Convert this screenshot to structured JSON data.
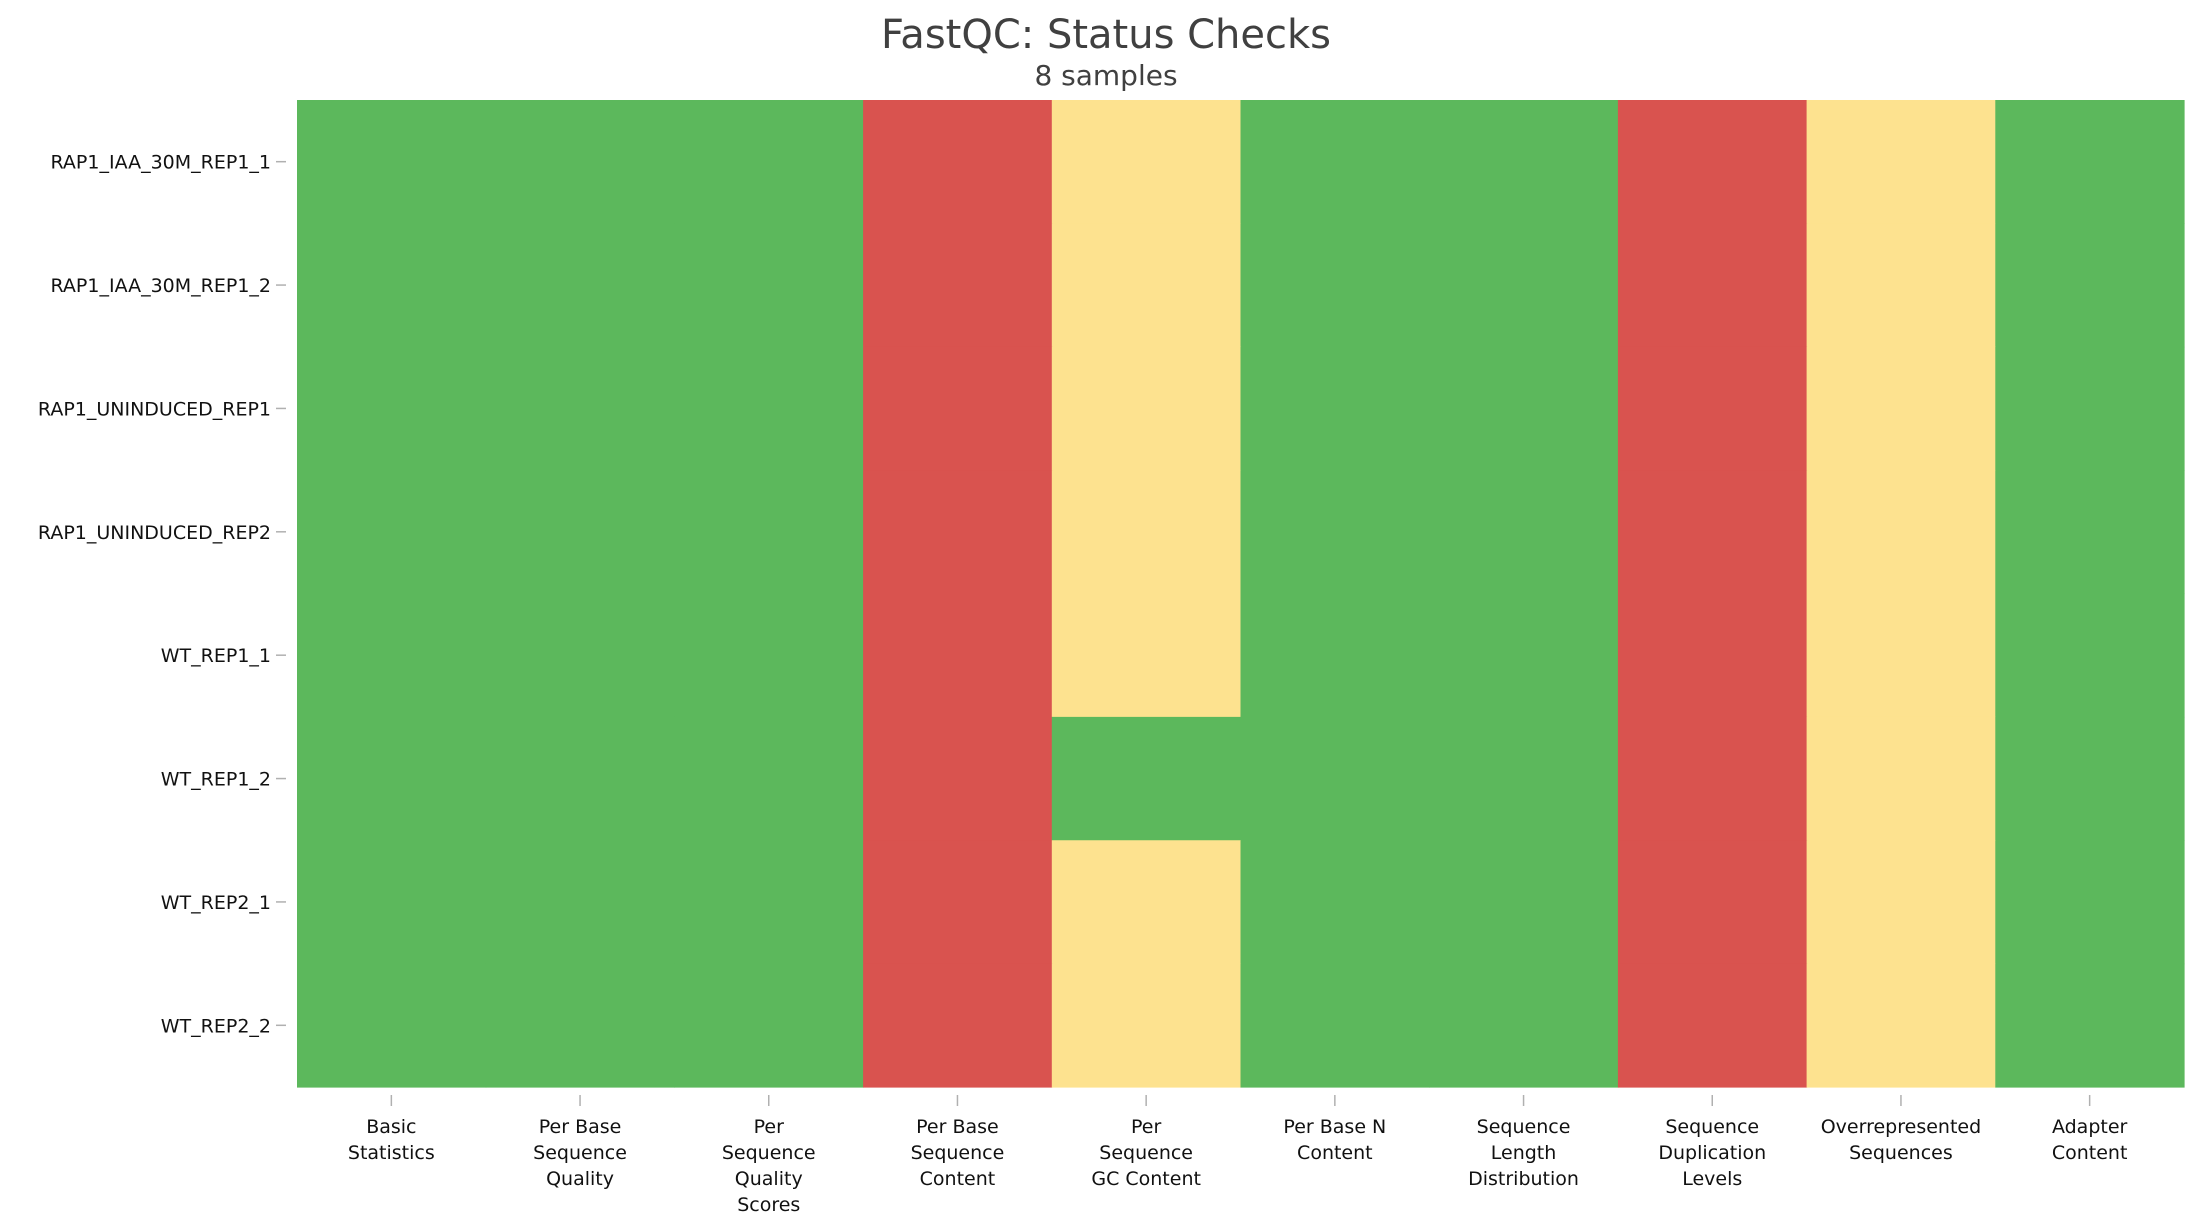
{
  "colors": {
    "pass": "#5cb85c",
    "warn": "#fde28f",
    "fail": "#d9534f"
  },
  "chart_data": {
    "type": "heatmap",
    "title": "FastQC: Status Checks",
    "subtitle": "8 samples",
    "columns": [
      [
        "Basic",
        "Statistics"
      ],
      [
        "Per Base",
        "Sequence",
        "Quality"
      ],
      [
        "Per",
        "Sequence",
        "Quality",
        "Scores"
      ],
      [
        "Per Base",
        "Sequence",
        "Content"
      ],
      [
        "Per",
        "Sequence",
        "GC Content"
      ],
      [
        "Per Base N",
        "Content"
      ],
      [
        "Sequence",
        "Length",
        "Distribution"
      ],
      [
        "Sequence",
        "Duplication",
        "Levels"
      ],
      [
        "Overrepresented",
        "Sequences"
      ],
      [
        "Adapter",
        "Content"
      ]
    ],
    "rows": [
      "RAP1_IAA_30M_REP1_1",
      "RAP1_IAA_30M_REP1_2",
      "RAP1_UNINDUCED_REP1",
      "RAP1_UNINDUCED_REP2",
      "WT_REP1_1",
      "WT_REP1_2",
      "WT_REP2_1",
      "WT_REP2_2"
    ],
    "status": [
      [
        "pass",
        "pass",
        "pass",
        "fail",
        "warn",
        "pass",
        "pass",
        "fail",
        "warn",
        "pass"
      ],
      [
        "pass",
        "pass",
        "pass",
        "fail",
        "warn",
        "pass",
        "pass",
        "fail",
        "warn",
        "pass"
      ],
      [
        "pass",
        "pass",
        "pass",
        "fail",
        "warn",
        "pass",
        "pass",
        "fail",
        "warn",
        "pass"
      ],
      [
        "pass",
        "pass",
        "pass",
        "fail",
        "warn",
        "pass",
        "pass",
        "fail",
        "warn",
        "pass"
      ],
      [
        "pass",
        "pass",
        "pass",
        "fail",
        "warn",
        "pass",
        "pass",
        "fail",
        "warn",
        "pass"
      ],
      [
        "pass",
        "pass",
        "pass",
        "fail",
        "pass",
        "pass",
        "pass",
        "fail",
        "warn",
        "pass"
      ],
      [
        "pass",
        "pass",
        "pass",
        "fail",
        "warn",
        "pass",
        "pass",
        "fail",
        "warn",
        "pass"
      ],
      [
        "pass",
        "pass",
        "pass",
        "fail",
        "warn",
        "pass",
        "pass",
        "fail",
        "warn",
        "pass"
      ]
    ]
  }
}
